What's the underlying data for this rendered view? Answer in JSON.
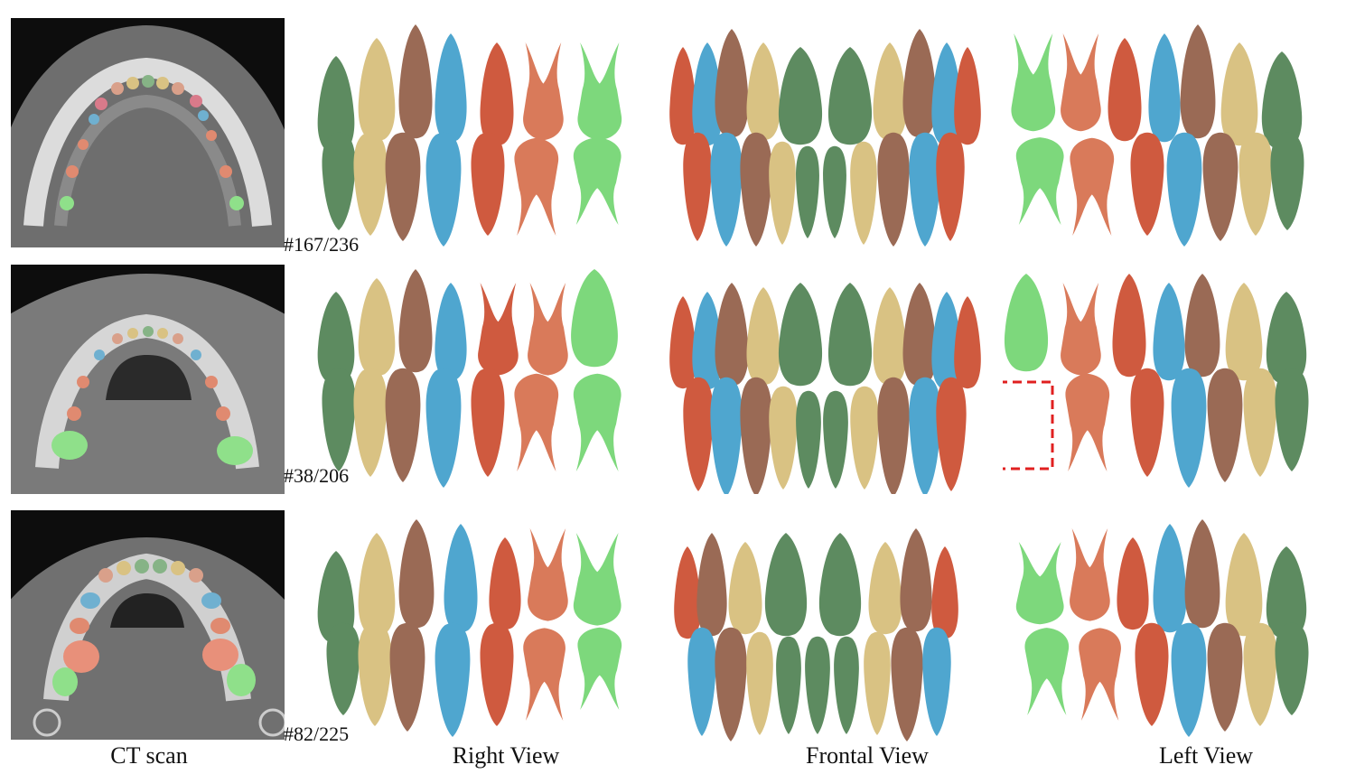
{
  "columns": {
    "ct": "CT scan",
    "right": "Right View",
    "frontal": "Frontal View",
    "left": "Left View"
  },
  "rows": [
    {
      "slice": "#167/236"
    },
    {
      "slice": "#38/206"
    },
    {
      "slice": "#82/225"
    }
  ],
  "colors": {
    "dark_green": "#5d8b60",
    "light_green": "#7dd87c",
    "tan": "#d9c283",
    "brown": "#9a6a55",
    "blue": "#4fa6cf",
    "red_orange": "#cf5a3f",
    "salmon": "#d97a5a",
    "annotation_red": "#e02020"
  }
}
